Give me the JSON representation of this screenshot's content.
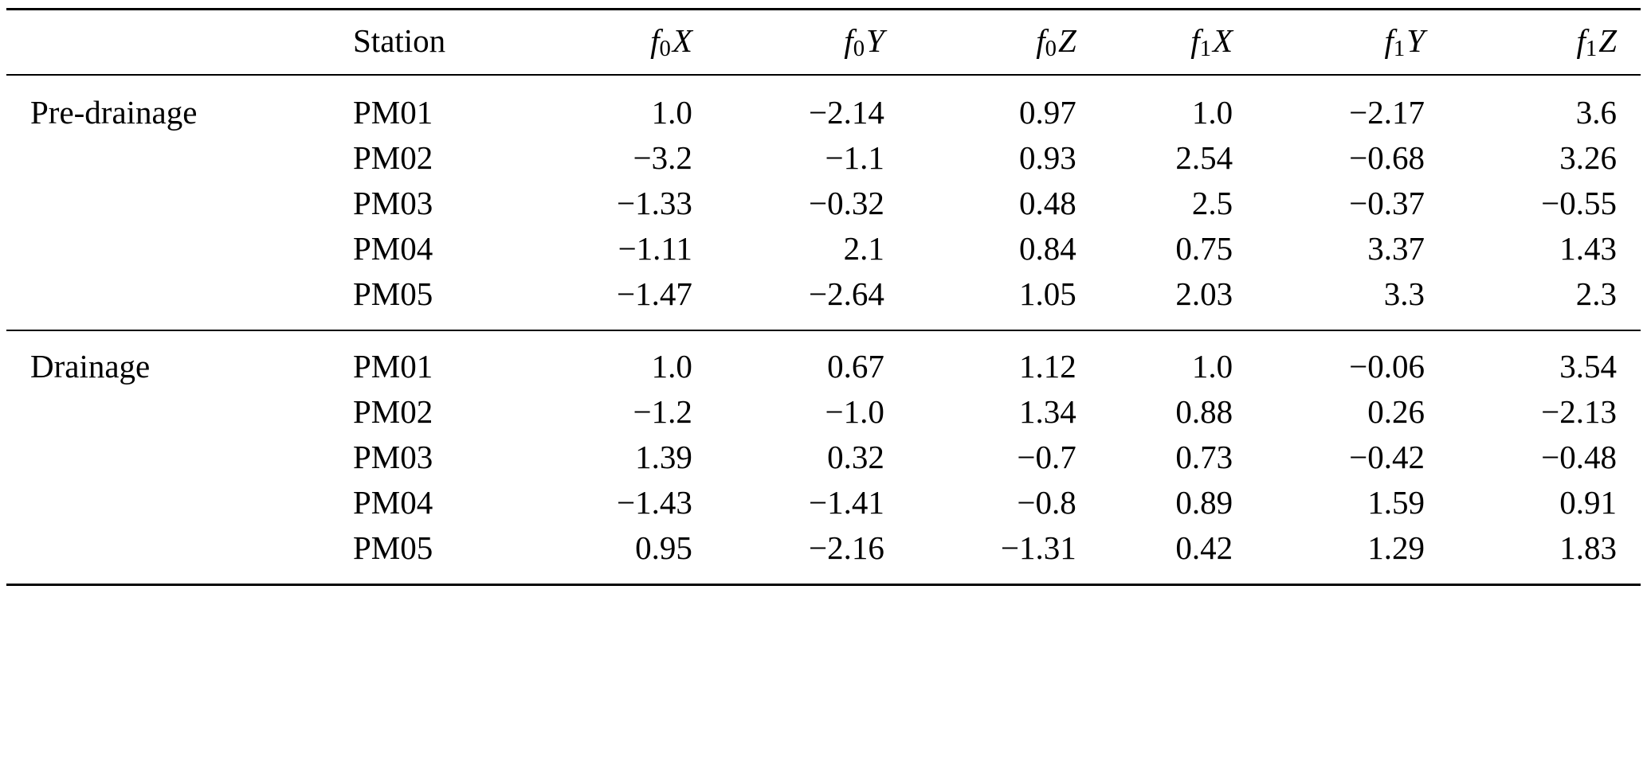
{
  "table": {
    "col_headers": {
      "station": "Station",
      "cols": [
        {
          "f": "f",
          "sub": "0",
          "axis": "X"
        },
        {
          "f": "f",
          "sub": "0",
          "axis": "Y"
        },
        {
          "f": "f",
          "sub": "0",
          "axis": "Z"
        },
        {
          "f": "f",
          "sub": "1",
          "axis": "X"
        },
        {
          "f": "f",
          "sub": "1",
          "axis": "Y"
        },
        {
          "f": "f",
          "sub": "1",
          "axis": "Z"
        }
      ]
    },
    "groups": [
      {
        "label": "Pre-drainage",
        "rows": [
          {
            "station": "PM01",
            "values": [
              "1.0",
              "−2.14",
              "0.97",
              "1.0",
              "−2.17",
              "3.6"
            ]
          },
          {
            "station": "PM02",
            "values": [
              "−3.2",
              "−1.1",
              "0.93",
              "2.54",
              "−0.68",
              "3.26"
            ]
          },
          {
            "station": "PM03",
            "values": [
              "−1.33",
              "−0.32",
              "0.48",
              "2.5",
              "−0.37",
              "−0.55"
            ]
          },
          {
            "station": "PM04",
            "values": [
              "−1.11",
              "2.1",
              "0.84",
              "0.75",
              "3.37",
              "1.43"
            ]
          },
          {
            "station": "PM05",
            "values": [
              "−1.47",
              "−2.64",
              "1.05",
              "2.03",
              "3.3",
              "2.3"
            ]
          }
        ]
      },
      {
        "label": "Drainage",
        "rows": [
          {
            "station": "PM01",
            "values": [
              "1.0",
              "0.67",
              "1.12",
              "1.0",
              "−0.06",
              "3.54"
            ]
          },
          {
            "station": "PM02",
            "values": [
              "−1.2",
              "−1.0",
              "1.34",
              "0.88",
              "0.26",
              "−2.13"
            ]
          },
          {
            "station": "PM03",
            "values": [
              "1.39",
              "0.32",
              "−0.7",
              "0.73",
              "−0.42",
              "−0.48"
            ]
          },
          {
            "station": "PM04",
            "values": [
              "−1.43",
              "−1.41",
              "−0.8",
              "0.89",
              "1.59",
              "0.91"
            ]
          },
          {
            "station": "PM05",
            "values": [
              "0.95",
              "−2.16",
              "−1.31",
              "0.42",
              "1.29",
              "1.83"
            ]
          }
        ]
      }
    ]
  }
}
